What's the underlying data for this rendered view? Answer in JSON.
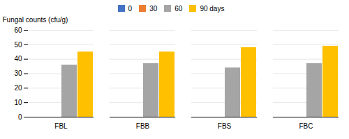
{
  "chart_data": {
    "type": "bar",
    "categories": [
      "FBL",
      "FBB",
      "FBS",
      "FBC"
    ],
    "series": [
      {
        "name": "0",
        "color": "#4472C4",
        "values": [
          0,
          0,
          0,
          0
        ]
      },
      {
        "name": "30",
        "color": "#ED7D31",
        "values": [
          0,
          0,
          0,
          0
        ]
      },
      {
        "name": "60",
        "color": "#A5A5A5",
        "values": [
          36,
          37,
          34,
          37
        ]
      },
      {
        "name": "90 days",
        "color": "#FFC000",
        "values": [
          45,
          45,
          48,
          49
        ]
      }
    ],
    "ylabel": "Fungal counts (cfu/g)",
    "ylim": [
      0,
      60
    ],
    "yticks": [
      0,
      10,
      20,
      30,
      40,
      50,
      60
    ],
    "grid": true,
    "legend": "top"
  }
}
